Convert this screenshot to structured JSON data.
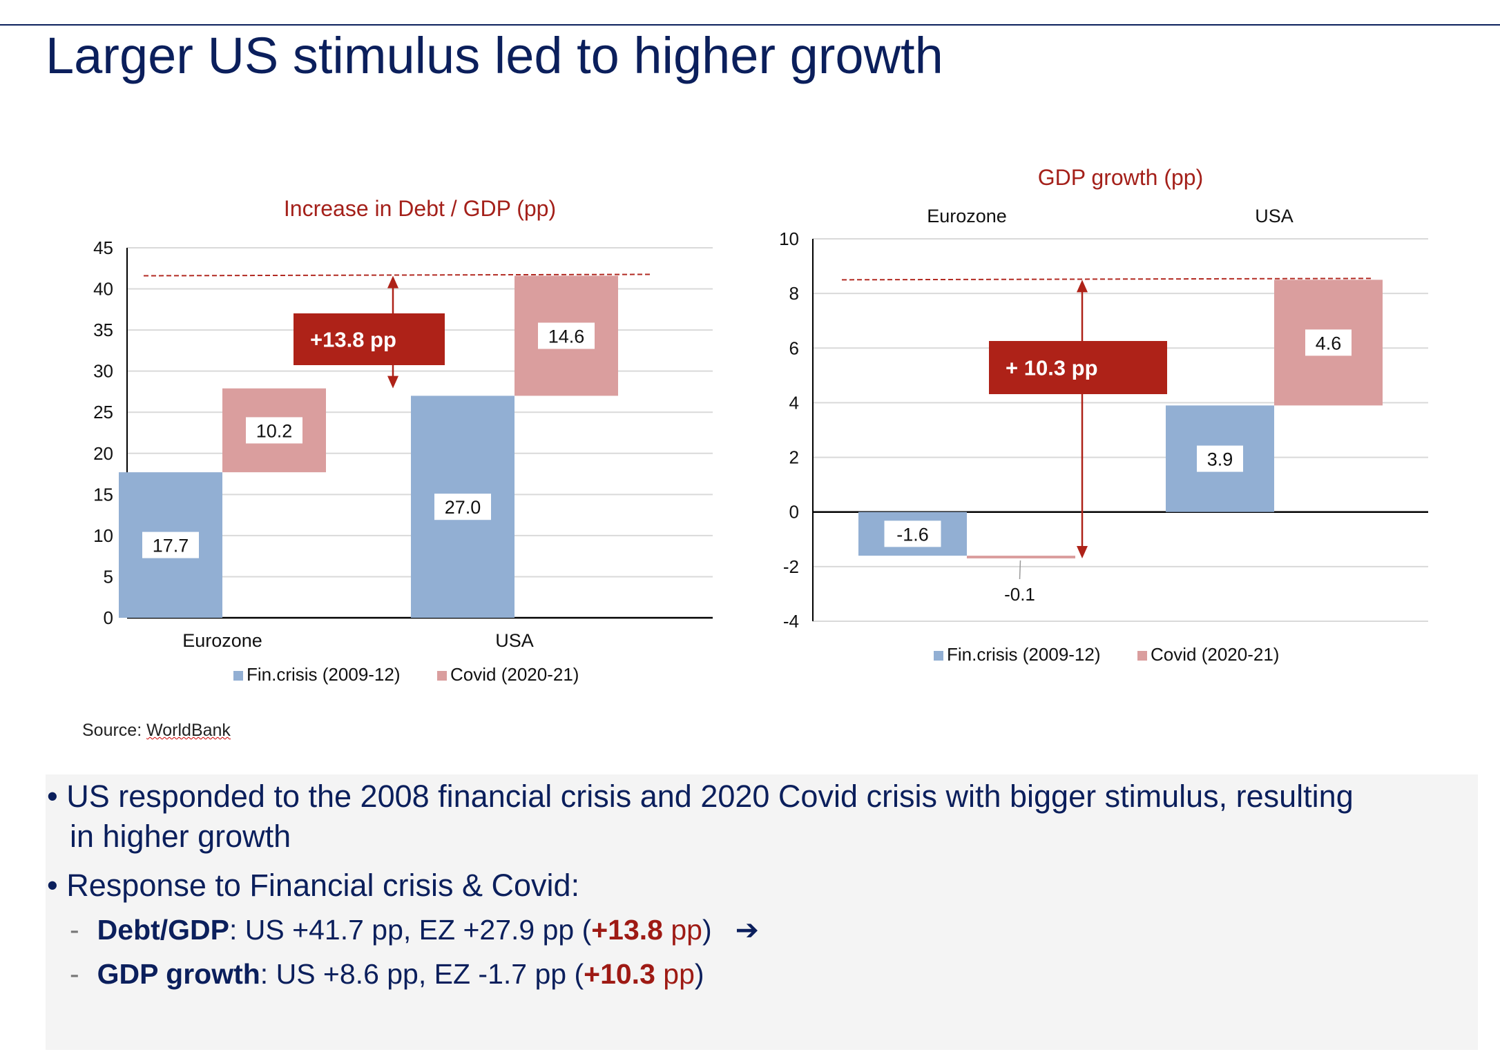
{
  "title": "Larger US stimulus led to higher growth",
  "source": {
    "label": "Source: ",
    "name": "WorldBank"
  },
  "colors": {
    "fin_crisis": "#92AFD3",
    "covid": "#DA9E9E",
    "accent_red": "#AE2218",
    "navy": "#0B1F5C"
  },
  "chart_data": [
    {
      "type": "bar",
      "subtype": "stacked-waterfall",
      "title": "Increase in Debt / GDP (pp)",
      "categories": [
        "Eurozone",
        "USA"
      ],
      "series": [
        {
          "name": "Fin.crisis (2009-12)",
          "values": [
            17.7,
            27.0
          ],
          "labels": [
            "17.7",
            "27.0"
          ]
        },
        {
          "name": "Covid (2020-21)",
          "values": [
            10.2,
            14.6
          ],
          "labels": [
            "10.2",
            "14.6"
          ]
        }
      ],
      "yticks": [
        "0",
        "5",
        "10",
        "15",
        "20",
        "25",
        "30",
        "35",
        "40",
        "45"
      ],
      "ylim": [
        0,
        45
      ],
      "grid": true,
      "legend": "bottom",
      "annotation": {
        "text": "+13.8 pp",
        "from": 27.9,
        "to": 41.6
      },
      "reference_line": 41.6
    },
    {
      "type": "bar",
      "subtype": "stacked-waterfall",
      "title": "GDP growth (pp)",
      "categories": [
        "Eurozone",
        "USA"
      ],
      "series": [
        {
          "name": "Fin.crisis (2009-12)",
          "values": [
            -1.6,
            3.9
          ],
          "labels": [
            "-1.6",
            "3.9"
          ]
        },
        {
          "name": "Covid (2020-21)",
          "values": [
            -0.1,
            4.6
          ],
          "labels": [
            "-0.1",
            "4.6"
          ]
        }
      ],
      "yticks": [
        "-4",
        "-2",
        "0",
        "2",
        "4",
        "6",
        "8",
        "10"
      ],
      "ylim": [
        -4,
        10
      ],
      "grid": true,
      "legend": "bottom",
      "category_labels_position": "top",
      "annotation": {
        "text": "+  10.3 pp",
        "from": -1.7,
        "to": 8.5
      },
      "reference_line": 8.5
    }
  ],
  "bullets": [
    {
      "text_line1": "US responded to the 2008 financial crisis and 2020 Covid crisis with bigger stimulus, resulting",
      "text_line2": "in higher growth"
    },
    {
      "text": "Response to Financial crisis & Covid:",
      "sub": [
        {
          "bold": "Debt/GDP",
          "rest": ": US +41.7 pp, EZ +27.9 pp (",
          "highlight": "+13.8",
          "unit": " pp",
          "close": ")",
          "arrow": "➔"
        },
        {
          "bold": "GDP growth",
          "rest": ": US +8.6 pp, EZ -1.7 pp (",
          "highlight": "+10.3",
          "unit": " pp",
          "close": ")"
        }
      ]
    }
  ]
}
